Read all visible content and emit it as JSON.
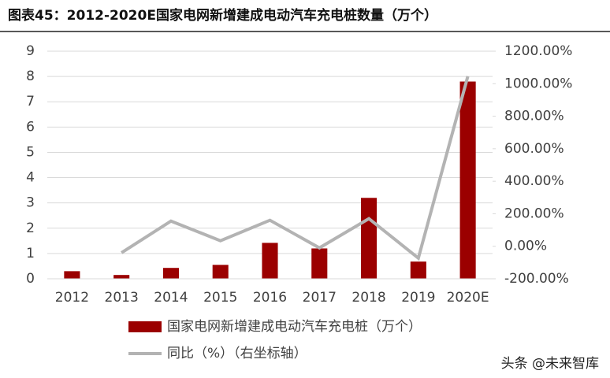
{
  "chart_data": {
    "type": "bar",
    "title": "图表45：2012-2020E国家电网新增建成电动汽车充电桩数量（万个）",
    "categories": [
      "2012",
      "2013",
      "2014",
      "2015",
      "2016",
      "2017",
      "2018",
      "2019",
      "2020E"
    ],
    "series": [
      {
        "name": "国家电网新增建成电动汽车充电桩（万个）",
        "color": "#9b0000",
        "type": "bar",
        "values": [
          0.3,
          0.15,
          0.43,
          0.55,
          1.42,
          1.2,
          3.2,
          0.68,
          7.8
        ]
      },
      {
        "name": "同比（%）（右坐标轴）",
        "color": "#b3b3b3",
        "type": "line",
        "axis": "y2",
        "values": [
          null,
          -40,
          155,
          34,
          160,
          -10,
          170,
          -73,
          1046
        ]
      }
    ],
    "ylim": [
      0,
      9
    ],
    "yticks": [
      0,
      1,
      2,
      3,
      4,
      5,
      6,
      7,
      8,
      9
    ],
    "y2lim": [
      -200,
      1200
    ],
    "y2ticks": [
      {
        "value": -200,
        "label": "-200.00%"
      },
      {
        "value": 0,
        "label": "0.00%"
      },
      {
        "value": 200,
        "label": "200.00%"
      },
      {
        "value": 400,
        "label": "400.00%"
      },
      {
        "value": 600,
        "label": "600.00%"
      },
      {
        "value": 800,
        "label": "800.00%"
      },
      {
        "value": 1000,
        "label": "1000.00%"
      },
      {
        "value": 1200,
        "label": "1200.00%"
      }
    ],
    "grid": true,
    "legend": "bottom",
    "watermark": "头条 @未来智库"
  }
}
